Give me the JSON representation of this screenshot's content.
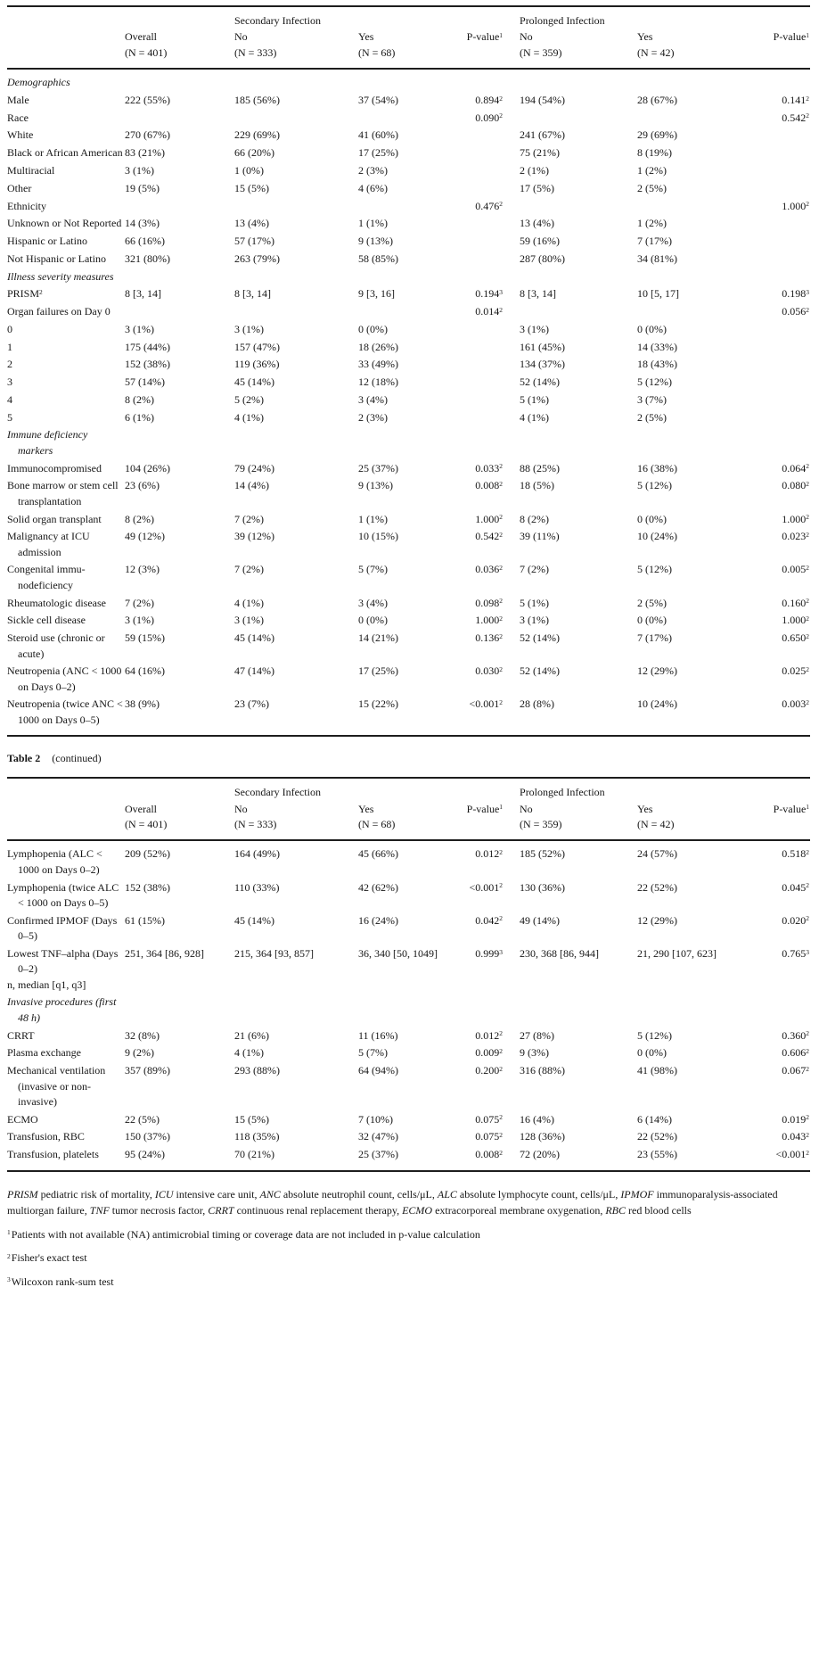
{
  "caption": {
    "label": "Table 2",
    "cont": "(continued)"
  },
  "colors": {
    "text": "#161616",
    "rule": "#1d1d1d",
    "background": "#ffffff"
  },
  "header": {
    "group_secondary": "Secondary Infec­tion",
    "group_prolonged": "Prolonged Infec­tion",
    "cols": [
      "",
      "Overall\n(N = 401)",
      "No\n(N = 333)",
      "Yes\n(N = 68)",
      "P-value^1",
      "No\n(N = 359)",
      "Yes\n(N = 42)",
      "P-value^1"
    ]
  },
  "table1_rows": [
    {
      "type": "section",
      "label": "Demographics"
    },
    {
      "label": "Male",
      "cells": [
        "222 (55%)",
        "185 (56%)",
        "37 (54%)",
        "0.894^2",
        "194 (54%)",
        "28 (67%)",
        "0.141^2"
      ]
    },
    {
      "label": "Race",
      "cells": [
        "",
        "",
        "",
        "0.090^2",
        "",
        "",
        "0.542^2"
      ]
    },
    {
      "label": "White",
      "cells": [
        "270 (67%)",
        "229 (69%)",
        "41 (60%)",
        "",
        "241 (67%)",
        "29 (69%)",
        ""
      ]
    },
    {
      "label": "Black or African American",
      "cells": [
        "83 (21%)",
        "66 (20%)",
        "17 (25%)",
        "",
        "75 (21%)",
        "8 (19%)",
        ""
      ]
    },
    {
      "label": "Multiracial",
      "cells": [
        "3 (1%)",
        "1 (0%)",
        "2 (3%)",
        "",
        "2 (1%)",
        "1 (2%)",
        ""
      ]
    },
    {
      "label": "Other",
      "cells": [
        "19 (5%)",
        "15 (5%)",
        "4 (6%)",
        "",
        "17 (5%)",
        "2 (5%)",
        ""
      ]
    },
    {
      "label": "Ethnicity",
      "cells": [
        "",
        "",
        "",
        "0.476^2",
        "",
        "",
        "1.000^2"
      ]
    },
    {
      "label": "Unknown or Not Reported",
      "cells": [
        "14 (3%)",
        "13 (4%)",
        "1 (1%)",
        "",
        "13 (4%)",
        "1 (2%)",
        ""
      ]
    },
    {
      "label": "Hispanic or Latino",
      "cells": [
        "66 (16%)",
        "57 (17%)",
        "9 (13%)",
        "",
        "59 (16%)",
        "7 (17%)",
        ""
      ]
    },
    {
      "label": "Not Hispanic or Latino",
      "cells": [
        "321 (80%)",
        "263 (79%)",
        "58 (85%)",
        "",
        "287 (80%)",
        "34 (81%)",
        ""
      ]
    },
    {
      "type": "section",
      "label": "Illness severity measures"
    },
    {
      "label": "PRISM^2",
      "cells": [
        "8 [3, 14]",
        "8 [3, 14]",
        "9 [3, 16]",
        "0.194^3",
        "8 [3, 14]",
        "10 [5, 17]",
        "0.198^3"
      ]
    },
    {
      "label": "Organ failures on Day 0",
      "cells": [
        "",
        "",
        "",
        "0.014^2",
        "",
        "",
        "0.056^2"
      ]
    },
    {
      "label": "0",
      "cells": [
        "3 (1%)",
        "3 (1%)",
        "0 (0%)",
        "",
        "3 (1%)",
        "0 (0%)",
        ""
      ]
    },
    {
      "label": "1",
      "cells": [
        "175 (44%)",
        "157 (47%)",
        "18 (26%)",
        "",
        "161 (45%)",
        "14 (33%)",
        ""
      ]
    },
    {
      "label": "2",
      "cells": [
        "152 (38%)",
        "119 (36%)",
        "33 (49%)",
        "",
        "134 (37%)",
        "18 (43%)",
        ""
      ]
    },
    {
      "label": "3",
      "cells": [
        "57 (14%)",
        "45 (14%)",
        "12 (18%)",
        "",
        "52 (14%)",
        "5 (12%)",
        ""
      ]
    },
    {
      "label": "4",
      "cells": [
        "8 (2%)",
        "5 (2%)",
        "3 (4%)",
        "",
        "5 (1%)",
        "3 (7%)",
        ""
      ]
    },
    {
      "label": "5",
      "cells": [
        "6 (1%)",
        "4 (1%)",
        "2 (3%)",
        "",
        "4 (1%)",
        "2 (5%)",
        ""
      ]
    },
    {
      "type": "section",
      "label": "Immune deficiency markers"
    },
    {
      "label": "Immunocompro­mised",
      "cells": [
        "104 (26%)",
        "79 (24%)",
        "25 (37%)",
        "0.033^2",
        "88 (25%)",
        "16 (38%)",
        "0.064^2"
      ]
    },
    {
      "label": "Bone marrow or stem cell trans­plantation",
      "cells": [
        "23 (6%)",
        "14 (4%)",
        "9 (13%)",
        "0.008^2",
        "18 (5%)",
        "5 (12%)",
        "0.080^2"
      ]
    },
    {
      "label": "Solid organ trans­plant",
      "cells": [
        "8 (2%)",
        "7 (2%)",
        "1 (1%)",
        "1.000^2",
        "8 (2%)",
        "0 (0%)",
        "1.000^2"
      ]
    },
    {
      "label": "Malignancy at ICU admission",
      "cells": [
        "49 (12%)",
        "39 (12%)",
        "10 (15%)",
        "0.542^2",
        "39 (11%)",
        "10 (24%)",
        "0.023^2"
      ]
    },
    {
      "label": "Congenital immu­nodeficiency",
      "cells": [
        "12 (3%)",
        "7 (2%)",
        "5 (7%)",
        "0.036^2",
        "7 (2%)",
        "5 (12%)",
        "0.005^2"
      ]
    },
    {
      "label": "Rheumatologic disease",
      "cells": [
        "7 (2%)",
        "4 (1%)",
        "3 (4%)",
        "0.098^2",
        "5 (1%)",
        "2 (5%)",
        "0.160^2"
      ]
    },
    {
      "label": "Sickle cell disease",
      "cells": [
        "3 (1%)",
        "3 (1%)",
        "0 (0%)",
        "1.000^2",
        "3 (1%)",
        "0 (0%)",
        "1.000^2"
      ]
    },
    {
      "label": "Steroid use (chronic or acute)",
      "cells": [
        "59 (15%)",
        "45 (14%)",
        "14 (21%)",
        "0.136^2",
        "52 (14%)",
        "7 (17%)",
        "0.650^2"
      ]
    },
    {
      "label": "Neutropenia (ANC < 1000 on Days 0–2)",
      "cells": [
        "64 (16%)",
        "47 (14%)",
        "17 (25%)",
        "0.030^2",
        "52 (14%)",
        "12 (29%)",
        "0.025^2"
      ]
    },
    {
      "label": "Neutropenia (twice ANC < 1000 on Days 0–5)",
      "cells": [
        "38 (9%)",
        "23 (7%)",
        "15 (22%)",
        "<0.001^2",
        "28 (8%)",
        "10 (24%)",
        "0.003^2"
      ]
    }
  ],
  "table2_rows": [
    {
      "label": "Lymphopenia (ALC < 1000 on Days 0–2)",
      "cells": [
        "209 (52%)",
        "164 (49%)",
        "45 (66%)",
        "0.012^2",
        "185 (52%)",
        "24 (57%)",
        "0.518^2"
      ]
    },
    {
      "label": "Lymphope­nia (twice ALC < 1000 on Days 0–5)",
      "cells": [
        "152 (38%)",
        "110 (33%)",
        "42 (62%)",
        "<0.001^2",
        "130 (36%)",
        "22 (52%)",
        "0.045^2"
      ]
    },
    {
      "label": "Confirmed IPMOF (Days 0–5)",
      "cells": [
        "61 (15%)",
        "45 (14%)",
        "16 (24%)",
        "0.042^2",
        "49 (14%)",
        "12 (29%)",
        "0.020^2"
      ]
    },
    {
      "label": "Lowest TNF–alpha (Days 0–2)",
      "label2": "n, median [q1, q3]",
      "cells": [
        "251, 364 [86, 928]",
        "215, 364 [93, 857]",
        "36, 340 [50, 1049]",
        "0.999^3",
        "230, 368 [86, 944]",
        "21, 290 [107, 623]",
        "0.765^3"
      ]
    },
    {
      "type": "section",
      "label": "Invasive proce­dures (first 48 h)"
    },
    {
      "label": "CRRT",
      "cells": [
        "32 (8%)",
        "21 (6%)",
        "11 (16%)",
        "0.012^2",
        "27 (8%)",
        "5 (12%)",
        "0.360^2"
      ]
    },
    {
      "label": "Plasma exchange",
      "cells": [
        "9 (2%)",
        "4 (1%)",
        "5 (7%)",
        "0.009^2",
        "9 (3%)",
        "0 (0%)",
        "0.606^2"
      ]
    },
    {
      "label": "Mechanical venti­lation (invasive or non-invasive)",
      "cells": [
        "357 (89%)",
        "293 (88%)",
        "64 (94%)",
        "0.200^2",
        "316 (88%)",
        "41 (98%)",
        "0.067^2"
      ]
    },
    {
      "label": "ECMO",
      "cells": [
        "22 (5%)",
        "15 (5%)",
        "7 (10%)",
        "0.075^2",
        "16 (4%)",
        "6 (14%)",
        "0.019^2"
      ]
    },
    {
      "label": "Transfusion, RBC",
      "cells": [
        "150 (37%)",
        "118 (35%)",
        "32 (47%)",
        "0.075^2",
        "128 (36%)",
        "22 (52%)",
        "0.043^2"
      ]
    },
    {
      "label": "Transfusion, platelets",
      "cells": [
        "95 (24%)",
        "70 (21%)",
        "25 (37%)",
        "0.008^2",
        "72 (20%)",
        "23 (55%)",
        "<0.001^2"
      ]
    }
  ],
  "footnotes": {
    "abbreviations": [
      [
        "PRISM",
        "pediatric risk of mortality"
      ],
      [
        "ICU",
        "intensive care unit"
      ],
      [
        "ANC",
        "absolute neutrophil count, cells/μL"
      ],
      [
        "ALC",
        "absolute lymphocyte count, cells/μL"
      ],
      [
        "IPMOF",
        "immunoparalysis-associated multiorgan failure"
      ],
      [
        "TNF",
        "tumor necrosis factor"
      ],
      [
        "CRRT",
        "continuous renal replacement therapy"
      ],
      [
        "ECMO",
        "extra­corporeal membrane oxygenation"
      ],
      [
        "RBC",
        "red blood cells"
      ]
    ],
    "notes": [
      {
        "sup": "1",
        "text": "Patients with not available (NA) antimicrobial timing or coverage data are not included in p-value calculation"
      },
      {
        "sup": "2",
        "text": "Fisher's exact test"
      },
      {
        "sup": "3",
        "text": "Wilcoxon rank-sum test"
      }
    ]
  }
}
